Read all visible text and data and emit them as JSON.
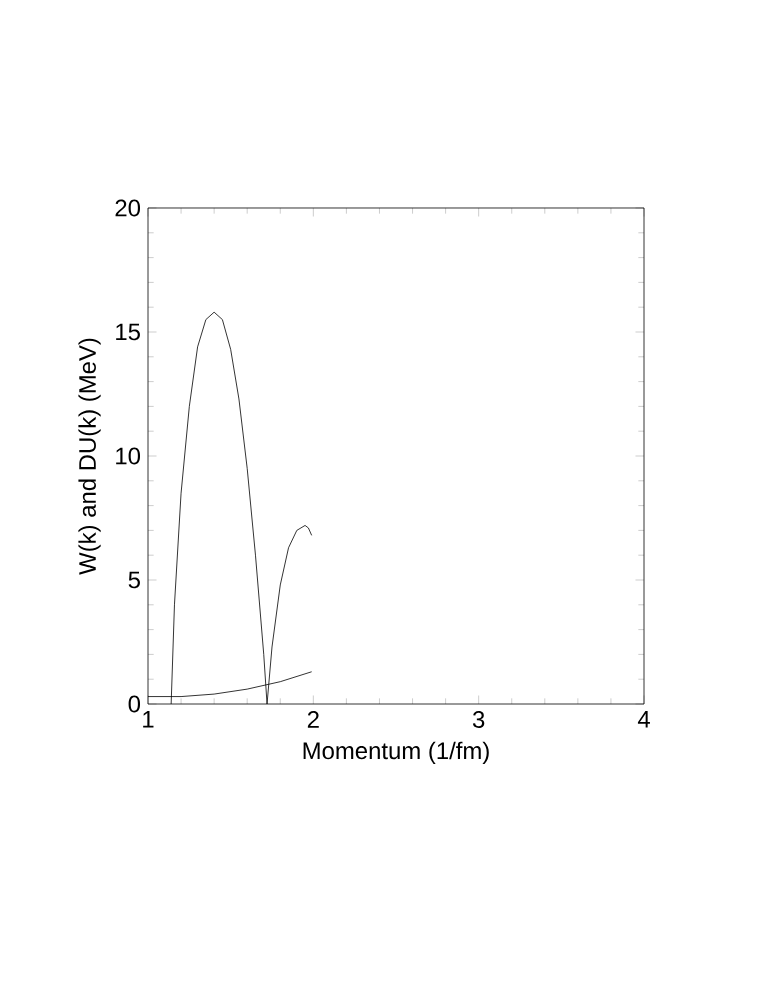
{
  "chart_data": {
    "type": "line",
    "xlabel": "Momentum  (1/fm)",
    "ylabel": "W(k)  and  DU(k)  (MeV)",
    "xlim": [
      1,
      4
    ],
    "ylim": [
      0,
      20
    ],
    "xticks": [
      1,
      2,
      3,
      4
    ],
    "yticks": [
      0,
      5,
      10,
      15,
      20
    ],
    "marker": "none",
    "line_style": "solid",
    "grid": false,
    "series": [
      {
        "color": "#000000",
        "x": [
          1.14,
          1.16,
          1.2,
          1.25,
          1.3,
          1.35,
          1.4,
          1.45,
          1.5,
          1.55,
          1.6,
          1.65,
          1.7,
          1.72,
          1.75,
          1.8,
          1.85,
          1.9,
          1.95,
          1.97,
          1.99
        ],
        "values": [
          0,
          4,
          8.5,
          12,
          14.4,
          15.5,
          15.8,
          15.5,
          14.3,
          12.3,
          9.5,
          6,
          2,
          0,
          2.3,
          4.8,
          6.3,
          7,
          7.2,
          7.1,
          6.8
        ]
      },
      {
        "color": "#000000",
        "x": [
          1,
          1.2,
          1.4,
          1.6,
          1.8,
          1.99
        ],
        "values": [
          0.3,
          0.3,
          0.4,
          0.6,
          0.9,
          1.3
        ]
      }
    ]
  }
}
